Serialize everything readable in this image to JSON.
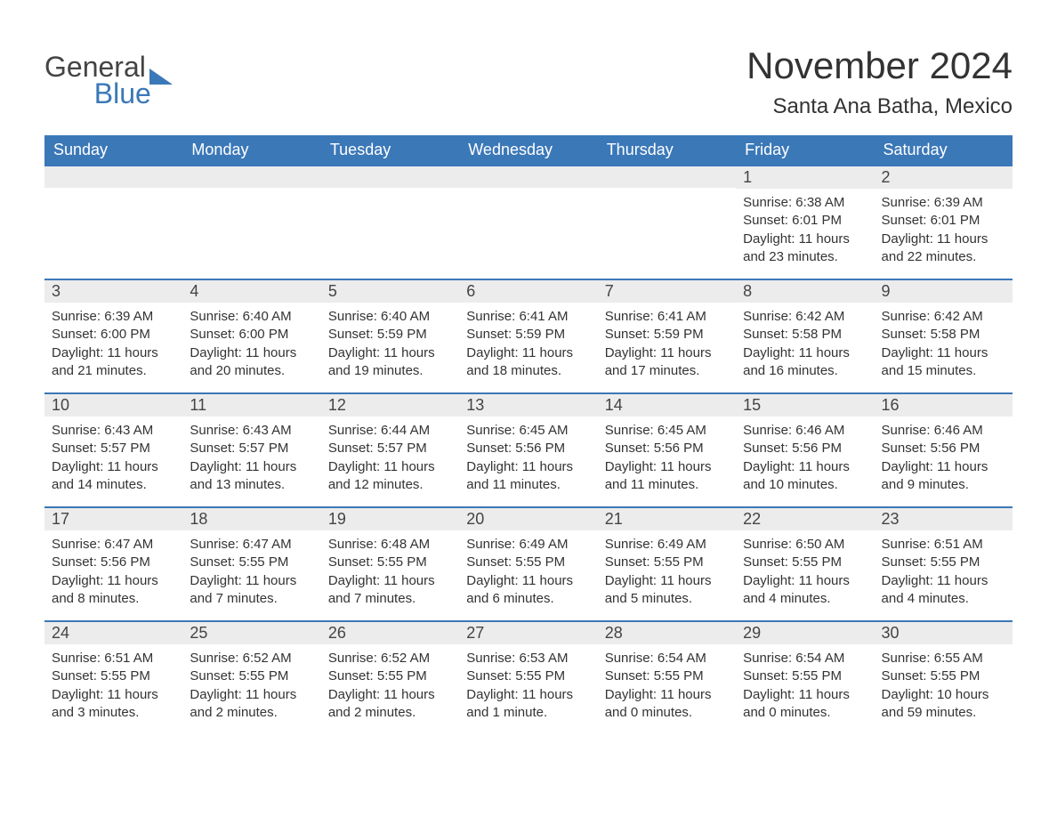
{
  "brand": {
    "line1": "General",
    "line2": "Blue",
    "text_color": "#444444",
    "accent_color": "#3b78b8",
    "icon_color": "#3b78b8"
  },
  "header": {
    "month_title": "November 2024",
    "location": "Santa Ana Batha, Mexico",
    "title_fontsize": 42,
    "location_fontsize": 24,
    "title_color": "#333333"
  },
  "calendar": {
    "header_bg": "#3b78b8",
    "header_text_color": "#ffffff",
    "daynum_bg": "#ececec",
    "daynum_border_color": "#3b78b8",
    "body_text_color": "#333333",
    "body_fontsize": 15,
    "columns": [
      "Sunday",
      "Monday",
      "Tuesday",
      "Wednesday",
      "Thursday",
      "Friday",
      "Saturday"
    ],
    "weeks": [
      [
        {
          "empty": true
        },
        {
          "empty": true
        },
        {
          "empty": true
        },
        {
          "empty": true
        },
        {
          "empty": true
        },
        {
          "num": "1",
          "sunrise": "Sunrise: 6:38 AM",
          "sunset": "Sunset: 6:01 PM",
          "daylight": "Daylight: 11 hours and 23 minutes."
        },
        {
          "num": "2",
          "sunrise": "Sunrise: 6:39 AM",
          "sunset": "Sunset: 6:01 PM",
          "daylight": "Daylight: 11 hours and 22 minutes."
        }
      ],
      [
        {
          "num": "3",
          "sunrise": "Sunrise: 6:39 AM",
          "sunset": "Sunset: 6:00 PM",
          "daylight": "Daylight: 11 hours and 21 minutes."
        },
        {
          "num": "4",
          "sunrise": "Sunrise: 6:40 AM",
          "sunset": "Sunset: 6:00 PM",
          "daylight": "Daylight: 11 hours and 20 minutes."
        },
        {
          "num": "5",
          "sunrise": "Sunrise: 6:40 AM",
          "sunset": "Sunset: 5:59 PM",
          "daylight": "Daylight: 11 hours and 19 minutes."
        },
        {
          "num": "6",
          "sunrise": "Sunrise: 6:41 AM",
          "sunset": "Sunset: 5:59 PM",
          "daylight": "Daylight: 11 hours and 18 minutes."
        },
        {
          "num": "7",
          "sunrise": "Sunrise: 6:41 AM",
          "sunset": "Sunset: 5:59 PM",
          "daylight": "Daylight: 11 hours and 17 minutes."
        },
        {
          "num": "8",
          "sunrise": "Sunrise: 6:42 AM",
          "sunset": "Sunset: 5:58 PM",
          "daylight": "Daylight: 11 hours and 16 minutes."
        },
        {
          "num": "9",
          "sunrise": "Sunrise: 6:42 AM",
          "sunset": "Sunset: 5:58 PM",
          "daylight": "Daylight: 11 hours and 15 minutes."
        }
      ],
      [
        {
          "num": "10",
          "sunrise": "Sunrise: 6:43 AM",
          "sunset": "Sunset: 5:57 PM",
          "daylight": "Daylight: 11 hours and 14 minutes."
        },
        {
          "num": "11",
          "sunrise": "Sunrise: 6:43 AM",
          "sunset": "Sunset: 5:57 PM",
          "daylight": "Daylight: 11 hours and 13 minutes."
        },
        {
          "num": "12",
          "sunrise": "Sunrise: 6:44 AM",
          "sunset": "Sunset: 5:57 PM",
          "daylight": "Daylight: 11 hours and 12 minutes."
        },
        {
          "num": "13",
          "sunrise": "Sunrise: 6:45 AM",
          "sunset": "Sunset: 5:56 PM",
          "daylight": "Daylight: 11 hours and 11 minutes."
        },
        {
          "num": "14",
          "sunrise": "Sunrise: 6:45 AM",
          "sunset": "Sunset: 5:56 PM",
          "daylight": "Daylight: 11 hours and 11 minutes."
        },
        {
          "num": "15",
          "sunrise": "Sunrise: 6:46 AM",
          "sunset": "Sunset: 5:56 PM",
          "daylight": "Daylight: 11 hours and 10 minutes."
        },
        {
          "num": "16",
          "sunrise": "Sunrise: 6:46 AM",
          "sunset": "Sunset: 5:56 PM",
          "daylight": "Daylight: 11 hours and 9 minutes."
        }
      ],
      [
        {
          "num": "17",
          "sunrise": "Sunrise: 6:47 AM",
          "sunset": "Sunset: 5:56 PM",
          "daylight": "Daylight: 11 hours and 8 minutes."
        },
        {
          "num": "18",
          "sunrise": "Sunrise: 6:47 AM",
          "sunset": "Sunset: 5:55 PM",
          "daylight": "Daylight: 11 hours and 7 minutes."
        },
        {
          "num": "19",
          "sunrise": "Sunrise: 6:48 AM",
          "sunset": "Sunset: 5:55 PM",
          "daylight": "Daylight: 11 hours and 7 minutes."
        },
        {
          "num": "20",
          "sunrise": "Sunrise: 6:49 AM",
          "sunset": "Sunset: 5:55 PM",
          "daylight": "Daylight: 11 hours and 6 minutes."
        },
        {
          "num": "21",
          "sunrise": "Sunrise: 6:49 AM",
          "sunset": "Sunset: 5:55 PM",
          "daylight": "Daylight: 11 hours and 5 minutes."
        },
        {
          "num": "22",
          "sunrise": "Sunrise: 6:50 AM",
          "sunset": "Sunset: 5:55 PM",
          "daylight": "Daylight: 11 hours and 4 minutes."
        },
        {
          "num": "23",
          "sunrise": "Sunrise: 6:51 AM",
          "sunset": "Sunset: 5:55 PM",
          "daylight": "Daylight: 11 hours and 4 minutes."
        }
      ],
      [
        {
          "num": "24",
          "sunrise": "Sunrise: 6:51 AM",
          "sunset": "Sunset: 5:55 PM",
          "daylight": "Daylight: 11 hours and 3 minutes."
        },
        {
          "num": "25",
          "sunrise": "Sunrise: 6:52 AM",
          "sunset": "Sunset: 5:55 PM",
          "daylight": "Daylight: 11 hours and 2 minutes."
        },
        {
          "num": "26",
          "sunrise": "Sunrise: 6:52 AM",
          "sunset": "Sunset: 5:55 PM",
          "daylight": "Daylight: 11 hours and 2 minutes."
        },
        {
          "num": "27",
          "sunrise": "Sunrise: 6:53 AM",
          "sunset": "Sunset: 5:55 PM",
          "daylight": "Daylight: 11 hours and 1 minute."
        },
        {
          "num": "28",
          "sunrise": "Sunrise: 6:54 AM",
          "sunset": "Sunset: 5:55 PM",
          "daylight": "Daylight: 11 hours and 0 minutes."
        },
        {
          "num": "29",
          "sunrise": "Sunrise: 6:54 AM",
          "sunset": "Sunset: 5:55 PM",
          "daylight": "Daylight: 11 hours and 0 minutes."
        },
        {
          "num": "30",
          "sunrise": "Sunrise: 6:55 AM",
          "sunset": "Sunset: 5:55 PM",
          "daylight": "Daylight: 10 hours and 59 minutes."
        }
      ]
    ]
  }
}
